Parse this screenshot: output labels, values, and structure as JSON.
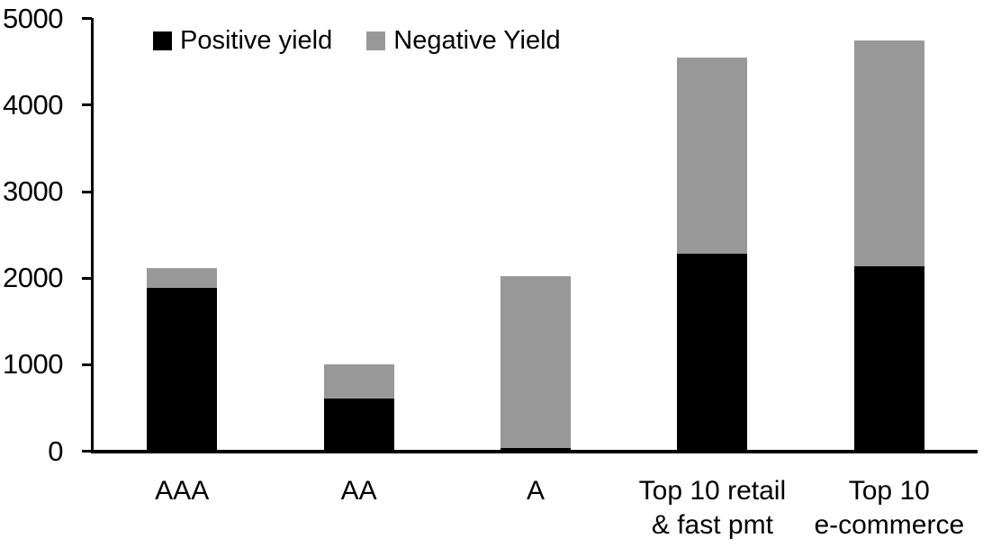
{
  "chart_data": {
    "type": "bar",
    "stacked": true,
    "title": "",
    "xlabel": "",
    "ylabel": "",
    "categories": [
      "AAA",
      "AA",
      "A",
      "Top 10 retail\n& fast pmt",
      "Top 10\ne-commerce"
    ],
    "series": [
      {
        "name": "Positive yield",
        "color": "#000000",
        "values": [
          1890,
          610,
          40,
          2280,
          2140
        ]
      },
      {
        "name": "Negative Yield",
        "color": "#989898",
        "values": [
          230,
          390,
          1980,
          2270,
          2610
        ]
      }
    ],
    "totals": [
      2120,
      1000,
      2020,
      4550,
      4750
    ],
    "ylim": [
      0,
      5000
    ],
    "yticks": [
      0,
      1000,
      2000,
      3000,
      4000,
      5000
    ],
    "grid": false,
    "legend_position": "top-inside",
    "colors": {
      "positive_yield": "#000000",
      "negative_yield": "#989898",
      "axis": "#000000",
      "background": "#ffffff"
    }
  }
}
